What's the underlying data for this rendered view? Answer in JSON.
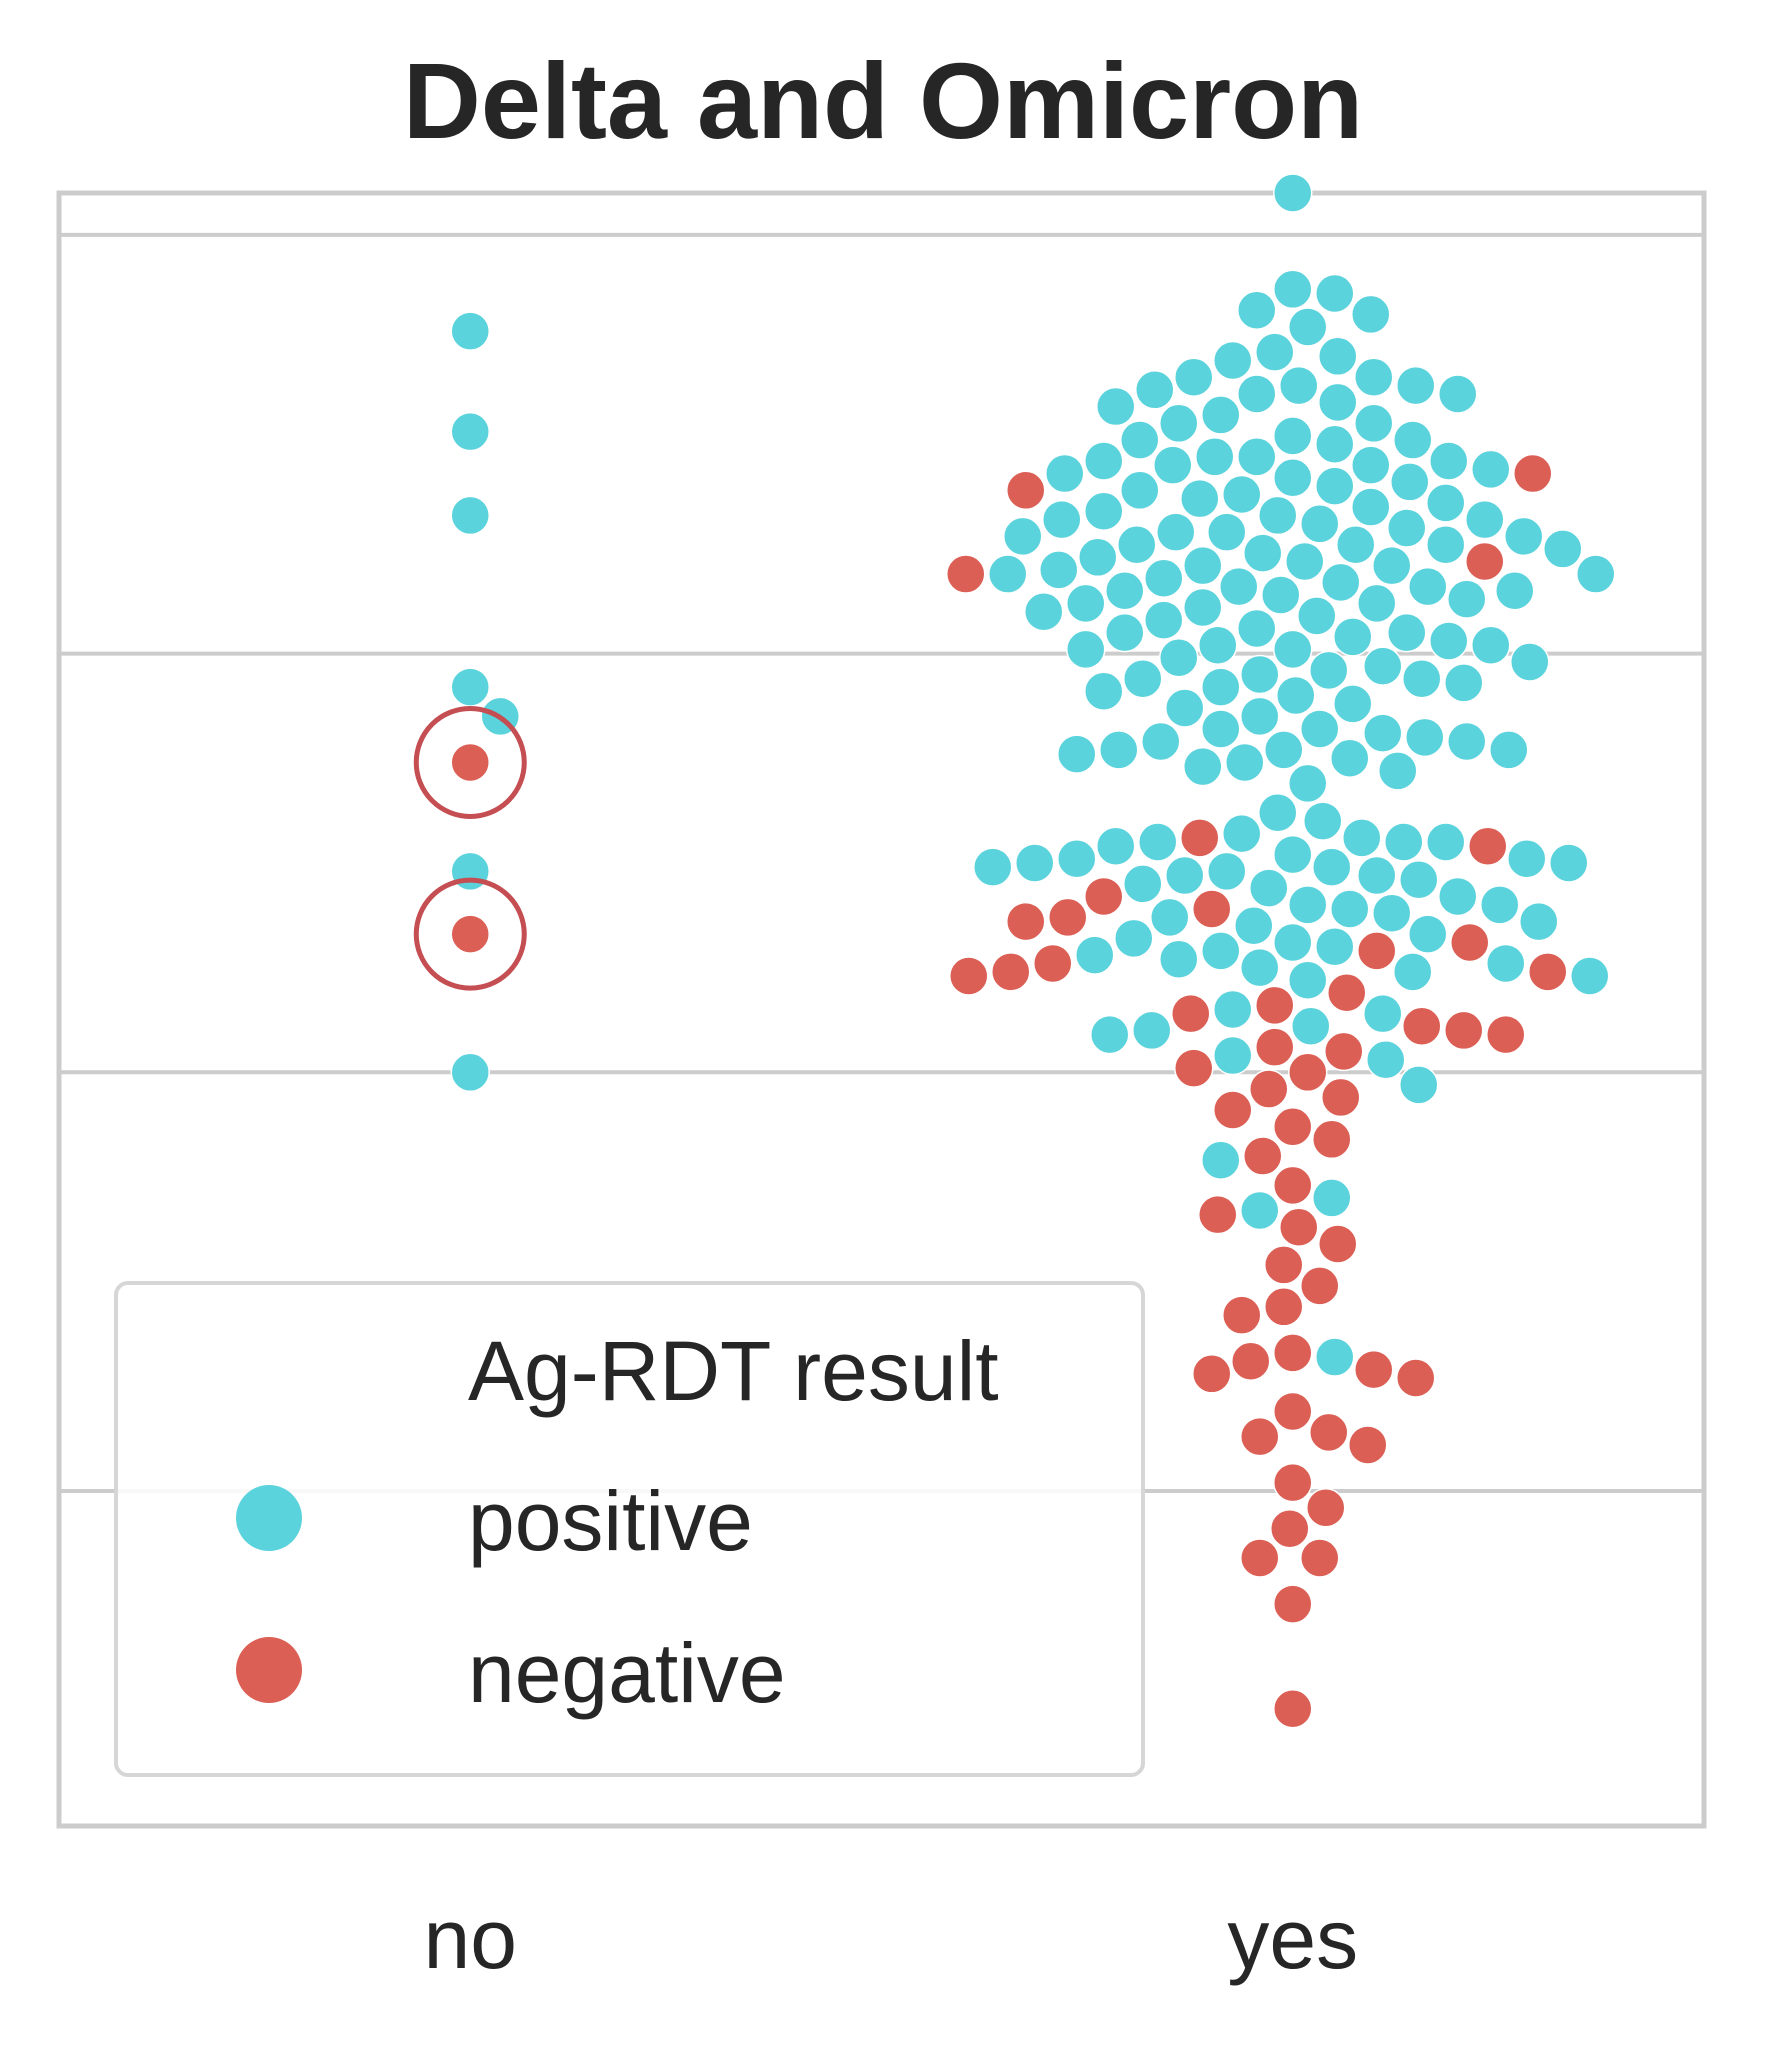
{
  "chart_data": {
    "type": "scatter",
    "subtype": "swarm",
    "title": "Delta and Omicron",
    "xlabel": "",
    "ylabel": "",
    "categories": [
      "no",
      "yes"
    ],
    "y_range": [
      -1.8,
      2.1
    ],
    "grid": true,
    "y_axis_tick_labels_shown": false,
    "legend": {
      "title": "Ag-RDT result",
      "placement": "lower-left",
      "entries": [
        {
          "label": "positive",
          "color": "#5bd3dc"
        },
        {
          "label": "negative",
          "color": "#dc5f55"
        }
      ]
    },
    "series": [
      {
        "name": "positive",
        "color": "#5bd3dc",
        "points": {
          "no": [
            1.77,
            1.53,
            1.33,
            0.92,
            0.85,
            0.48,
            0.0
          ],
          "yes": [
            2.1,
            1.87,
            1.86,
            1.82,
            1.81,
            1.78,
            1.72,
            1.71,
            1.7,
            1.66,
            1.66,
            1.64,
            1.64,
            1.63,
            1.62,
            1.62,
            1.6,
            1.59,
            1.57,
            1.55,
            1.55,
            1.52,
            1.51,
            1.51,
            1.5,
            1.47,
            1.47,
            1.46,
            1.46,
            1.45,
            1.45,
            1.44,
            1.43,
            1.42,
            1.41,
            1.4,
            1.39,
            1.38,
            1.37,
            1.36,
            1.35,
            1.34,
            1.33,
            1.32,
            1.32,
            1.31,
            1.3,
            1.29,
            1.29,
            1.28,
            1.28,
            1.26,
            1.26,
            1.26,
            1.25,
            1.24,
            1.23,
            1.22,
            1.21,
            1.21,
            1.2,
            1.19,
            1.19,
            1.18,
            1.17,
            1.16,
            1.16,
            1.15,
            1.15,
            1.14,
            1.13,
            1.12,
            1.12,
            1.11,
            1.1,
            1.09,
            1.08,
            1.06,
            1.05,
            1.05,
            1.04,
            1.03,
            1.02,
            1.02,
            1.01,
            1.01,
            0.99,
            0.98,
            0.97,
            0.96,
            0.95,
            0.94,
            0.94,
            0.93,
            0.92,
            0.91,
            0.9,
            0.88,
            0.87,
            0.85,
            0.82,
            0.82,
            0.81,
            0.8,
            0.79,
            0.79,
            0.77,
            0.77,
            0.77,
            0.76,
            0.75,
            0.74,
            0.73,
            0.72,
            0.69,
            0.62,
            0.6,
            0.57,
            0.56,
            0.55,
            0.55,
            0.55,
            0.54,
            0.52,
            0.51,
            0.51,
            0.5,
            0.5,
            0.49,
            0.49,
            0.48,
            0.47,
            0.47,
            0.46,
            0.45,
            0.44,
            0.42,
            0.4,
            0.4,
            0.39,
            0.38,
            0.37,
            0.36,
            0.35,
            0.33,
            0.32,
            0.31,
            0.3,
            0.29,
            0.28,
            0.27,
            0.26,
            0.25,
            0.24,
            0.23,
            0.22,
            0.15,
            0.14,
            0.11,
            0.1,
            0.09,
            0.04,
            0.03,
            -0.03,
            -0.21,
            -0.3,
            -0.33,
            -0.68
          ]
        }
      },
      {
        "name": "negative",
        "color": "#dc5f55",
        "points": {
          "no": [
            0.74,
            0.33
          ],
          "yes": [
            1.43,
            1.39,
            1.22,
            1.19,
            0.56,
            0.54,
            0.42,
            0.39,
            0.37,
            0.36,
            0.31,
            0.29,
            0.26,
            0.24,
            0.24,
            0.23,
            0.19,
            0.16,
            0.14,
            0.11,
            0.1,
            0.09,
            0.06,
            0.05,
            0.01,
            0.0,
            -0.04,
            -0.06,
            -0.09,
            -0.13,
            -0.16,
            -0.2,
            -0.27,
            -0.34,
            -0.37,
            -0.41,
            -0.46,
            -0.51,
            -0.56,
            -0.58,
            -0.67,
            -0.69,
            -0.71,
            -0.72,
            -0.73,
            -0.81,
            -0.86,
            -0.87,
            -0.89,
            -0.98,
            -1.04,
            -1.09,
            -1.16,
            -1.16,
            -1.27,
            -1.52
          ]
        }
      }
    ],
    "highlighted_points": [
      {
        "category": "no",
        "series": "negative",
        "value": 0.74
      },
      {
        "category": "no",
        "series": "negative",
        "value": 0.33
      }
    ]
  }
}
